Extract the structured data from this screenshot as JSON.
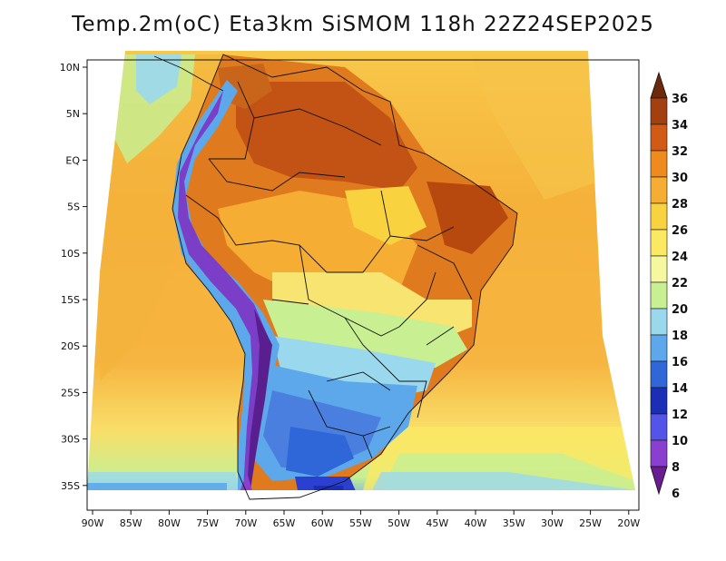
{
  "title": "Temp.2m(oC) Eta3km SiSMOM 118h 22Z24SEP2025",
  "chart_data": {
    "type": "heatmap",
    "variable": "Temp.2m(oC)",
    "model": "Eta3km SiSMOM",
    "forecast_hour": "118h",
    "valid_time": "22Z24SEP2025",
    "x_ticks": [
      "90W",
      "85W",
      "80W",
      "75W",
      "70W",
      "65W",
      "60W",
      "55W",
      "50W",
      "45W",
      "40W",
      "35W",
      "30W",
      "25W",
      "20W"
    ],
    "y_ticks": [
      "10N",
      "5N",
      "EQ",
      "5S",
      "10S",
      "15S",
      "20S",
      "25S",
      "30S",
      "35S"
    ],
    "colorbar": {
      "labels": [
        "36",
        "34",
        "32",
        "30",
        "28",
        "26",
        "24",
        "22",
        "20",
        "18",
        "16",
        "14",
        "12",
        "10",
        "8",
        "6"
      ],
      "colors": [
        "#6b2a0c",
        "#a2400f",
        "#d05a16",
        "#ef8a1e",
        "#f6ad33",
        "#f8d23f",
        "#fbe964",
        "#f6f8a0",
        "#c8ef92",
        "#9ad8ee",
        "#5da8ea",
        "#2f66d8",
        "#1a2fb5",
        "#5454e8",
        "#8a3fcf",
        "#6a1d91"
      ]
    }
  },
  "colors": {
    "ocean_warm": "#f4b23c",
    "ocean_mid": "#fbe16a",
    "ocean_cool": "#c8ef92",
    "land_hot": "#dc6a1c",
    "land_cool": "#4a7fe0",
    "andes": "#7a3fc6"
  }
}
